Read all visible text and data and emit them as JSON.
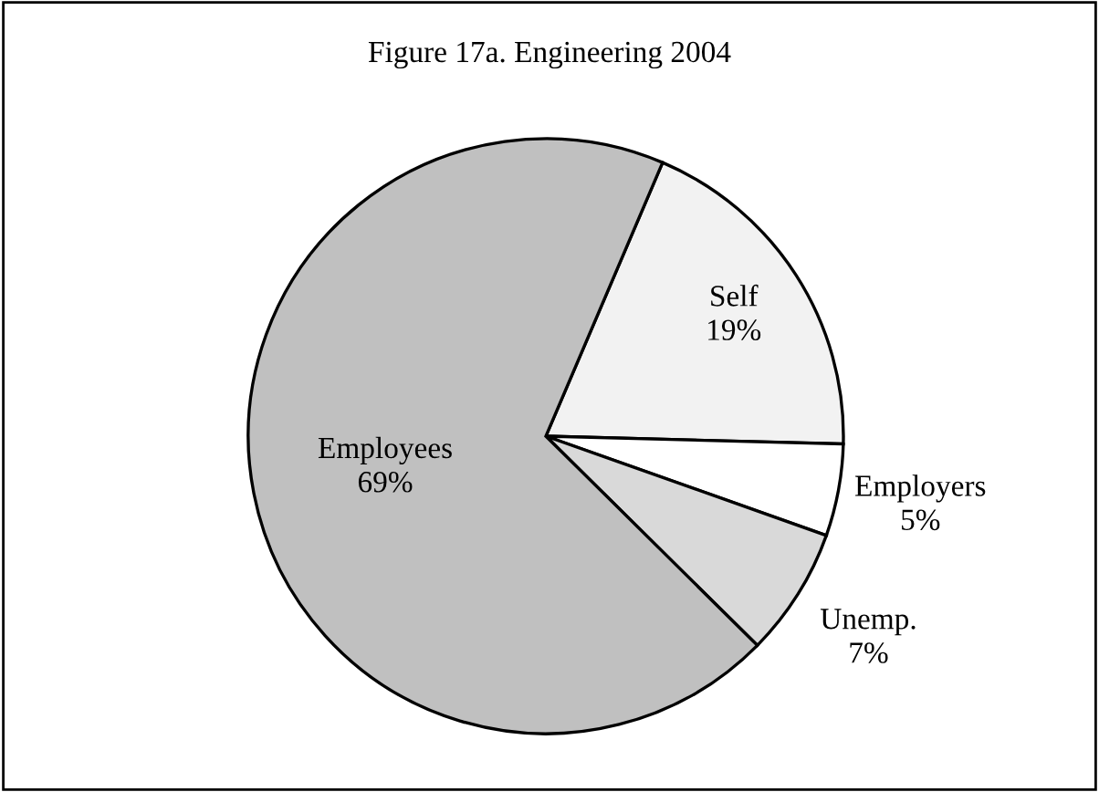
{
  "chart_data": {
    "type": "pie",
    "title": "Figure 17a. Engineering 2004",
    "categories": [
      "Self",
      "Employers",
      "Unemp.",
      "Employees"
    ],
    "values": [
      19,
      5,
      7,
      69
    ],
    "colors": [
      "#f2f2f2",
      "#ffffff",
      "#d9d9d9",
      "#c0c0c0"
    ],
    "value_labels": [
      "19%",
      "5%",
      "7%",
      "69%"
    ]
  }
}
